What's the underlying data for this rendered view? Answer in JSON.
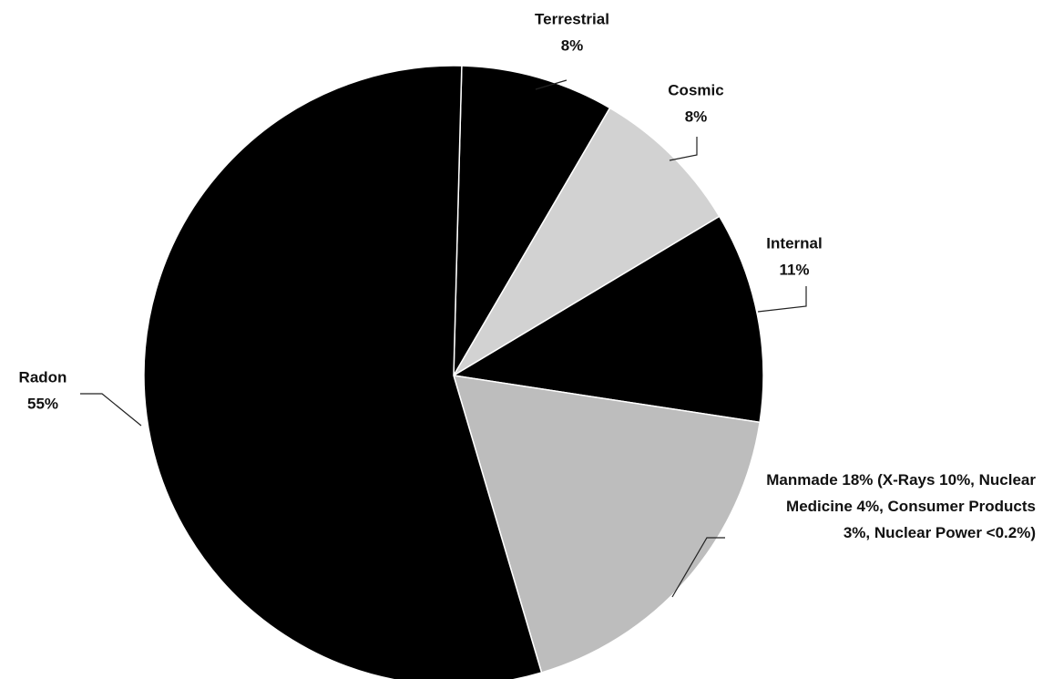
{
  "chart_data": {
    "type": "pie",
    "categories": [
      "Terrestrial",
      "Cosmic",
      "Internal",
      "Manmade 18% (X-Rays 10%, Nuclear Medicine 4%, Consumer Products 3%, Nuclear Power <0.2%)",
      "Radon"
    ],
    "values": [
      8,
      8,
      11,
      18,
      55
    ],
    "value_labels": [
      "8%",
      "8%",
      "11%",
      null,
      "55%"
    ],
    "colors": [
      "#000000",
      "#d2d2d2",
      "#000000",
      "#bdbdbd",
      "#000000"
    ]
  }
}
